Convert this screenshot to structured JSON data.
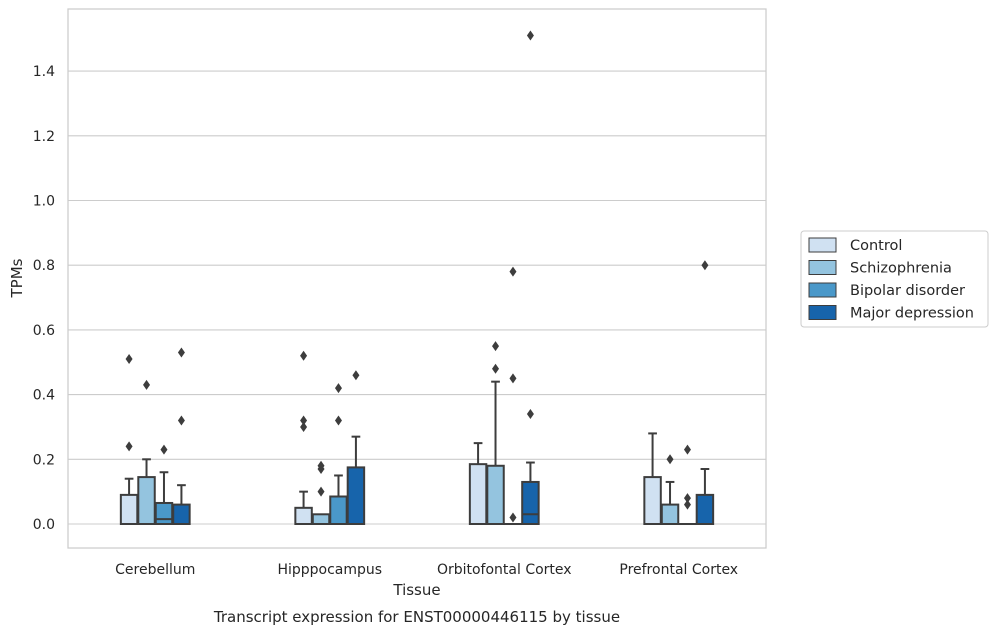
{
  "chart_data": {
    "type": "box",
    "title": "",
    "xlabel": "Tissue",
    "ylabel": "TPMs",
    "caption": "Transcript expression for ENST00000446115 by tissue",
    "ylim": [
      -0.07,
      1.59
    ],
    "yticks": [
      0.0,
      0.2,
      0.4,
      0.6,
      0.8,
      1.0,
      1.2,
      1.4
    ],
    "ytick_labels": [
      "0.0",
      "0.2",
      "0.4",
      "0.6",
      "0.8",
      "1.0",
      "1.2",
      "1.4"
    ],
    "grid": "horizontal",
    "legend_position": "right",
    "categories": [
      "Cerebellum",
      "Hipppocampus",
      "Orbitofontal Cortex",
      "Prefrontal Cortex"
    ],
    "series": [
      {
        "name": "Control",
        "color": "#d0e1f2",
        "boxes": [
          {
            "q1": 0.0,
            "median": 0.0,
            "q3": 0.09,
            "whisker_low": 0.0,
            "whisker_high": 0.14,
            "outliers": [
              0.24,
              0.51
            ]
          },
          {
            "q1": 0.0,
            "median": 0.0,
            "q3": 0.05,
            "whisker_low": 0.0,
            "whisker_high": 0.1,
            "outliers": [
              0.3,
              0.32,
              0.52
            ]
          },
          {
            "q1": 0.0,
            "median": 0.0,
            "q3": 0.185,
            "whisker_low": 0.0,
            "whisker_high": 0.25,
            "outliers": []
          },
          {
            "q1": 0.0,
            "median": 0.0,
            "q3": 0.145,
            "whisker_low": 0.0,
            "whisker_high": 0.28,
            "outliers": []
          }
        ]
      },
      {
        "name": "Schizophrenia",
        "color": "#94c4df",
        "boxes": [
          {
            "q1": 0.0,
            "median": 0.0,
            "q3": 0.145,
            "whisker_low": 0.0,
            "whisker_high": 0.2,
            "outliers": [
              0.43
            ]
          },
          {
            "q1": 0.0,
            "median": 0.0,
            "q3": 0.03,
            "whisker_low": 0.0,
            "whisker_high": 0.03,
            "outliers": [
              0.1,
              0.17,
              0.18
            ]
          },
          {
            "q1": 0.0,
            "median": 0.0,
            "q3": 0.18,
            "whisker_low": 0.0,
            "whisker_high": 0.44,
            "outliers": [
              0.48,
              0.55
            ]
          },
          {
            "q1": 0.0,
            "median": 0.0,
            "q3": 0.06,
            "whisker_low": 0.0,
            "whisker_high": 0.13,
            "outliers": [
              0.2
            ]
          }
        ]
      },
      {
        "name": "Bipolar disorder",
        "color": "#4a98c9",
        "boxes": [
          {
            "q1": 0.0,
            "median": 0.015,
            "q3": 0.065,
            "whisker_low": 0.0,
            "whisker_high": 0.16,
            "outliers": [
              0.23
            ]
          },
          {
            "q1": 0.0,
            "median": 0.0,
            "q3": 0.085,
            "whisker_low": 0.0,
            "whisker_high": 0.15,
            "outliers": [
              0.32,
              0.42
            ]
          },
          {
            "q1": 0.0,
            "median": 0.0,
            "q3": 0.0,
            "whisker_low": 0.0,
            "whisker_high": 0.0,
            "outliers": [
              0.02,
              0.45,
              0.78
            ]
          },
          {
            "q1": 0.0,
            "median": 0.0,
            "q3": 0.0,
            "whisker_low": 0.0,
            "whisker_high": 0.0,
            "outliers": [
              0.06,
              0.08,
              0.23
            ]
          }
        ]
      },
      {
        "name": "Major depression",
        "color": "#1764ab",
        "boxes": [
          {
            "q1": 0.0,
            "median": 0.0,
            "q3": 0.06,
            "whisker_low": 0.0,
            "whisker_high": 0.12,
            "outliers": [
              0.32,
              0.53
            ]
          },
          {
            "q1": 0.0,
            "median": 0.0,
            "q3": 0.175,
            "whisker_low": 0.0,
            "whisker_high": 0.27,
            "outliers": [
              0.46
            ]
          },
          {
            "q1": 0.0,
            "median": 0.03,
            "q3": 0.13,
            "whisker_low": 0.0,
            "whisker_high": 0.19,
            "outliers": [
              0.34,
              1.51
            ]
          },
          {
            "q1": 0.0,
            "median": 0.0,
            "q3": 0.09,
            "whisker_low": 0.0,
            "whisker_high": 0.17,
            "outliers": [
              0.8
            ]
          }
        ]
      }
    ]
  }
}
